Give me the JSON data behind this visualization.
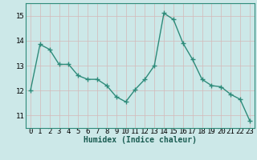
{
  "xlabel": "Humidex (Indice chaleur)",
  "ylabel": "",
  "x": [
    0,
    1,
    2,
    3,
    4,
    5,
    6,
    7,
    8,
    9,
    10,
    11,
    12,
    13,
    14,
    15,
    16,
    17,
    18,
    19,
    20,
    21,
    22,
    23
  ],
  "y": [
    12.0,
    13.85,
    13.65,
    13.05,
    13.05,
    12.6,
    12.45,
    12.45,
    12.2,
    11.75,
    11.55,
    12.05,
    12.45,
    13.0,
    15.1,
    14.85,
    13.9,
    13.25,
    12.45,
    12.2,
    12.15,
    11.85,
    11.65,
    10.8
  ],
  "line_color": "#2e8b7a",
  "marker": "+",
  "marker_size": 4,
  "bg_color": "#cce8e8",
  "grid_major_color": "#b0cccc",
  "grid_minor_color": "#c8e0e0",
  "ylim": [
    10.5,
    15.5
  ],
  "yticks": [
    11,
    12,
    13,
    14,
    15
  ],
  "xticks": [
    0,
    1,
    2,
    3,
    4,
    5,
    6,
    7,
    8,
    9,
    10,
    11,
    12,
    13,
    14,
    15,
    16,
    17,
    18,
    19,
    20,
    21,
    22,
    23
  ],
  "xlabel_fontsize": 7,
  "ylabel_fontsize": 7,
  "tick_fontsize": 6.5,
  "line_width": 1.0,
  "spine_color": "#2e8b7a"
}
